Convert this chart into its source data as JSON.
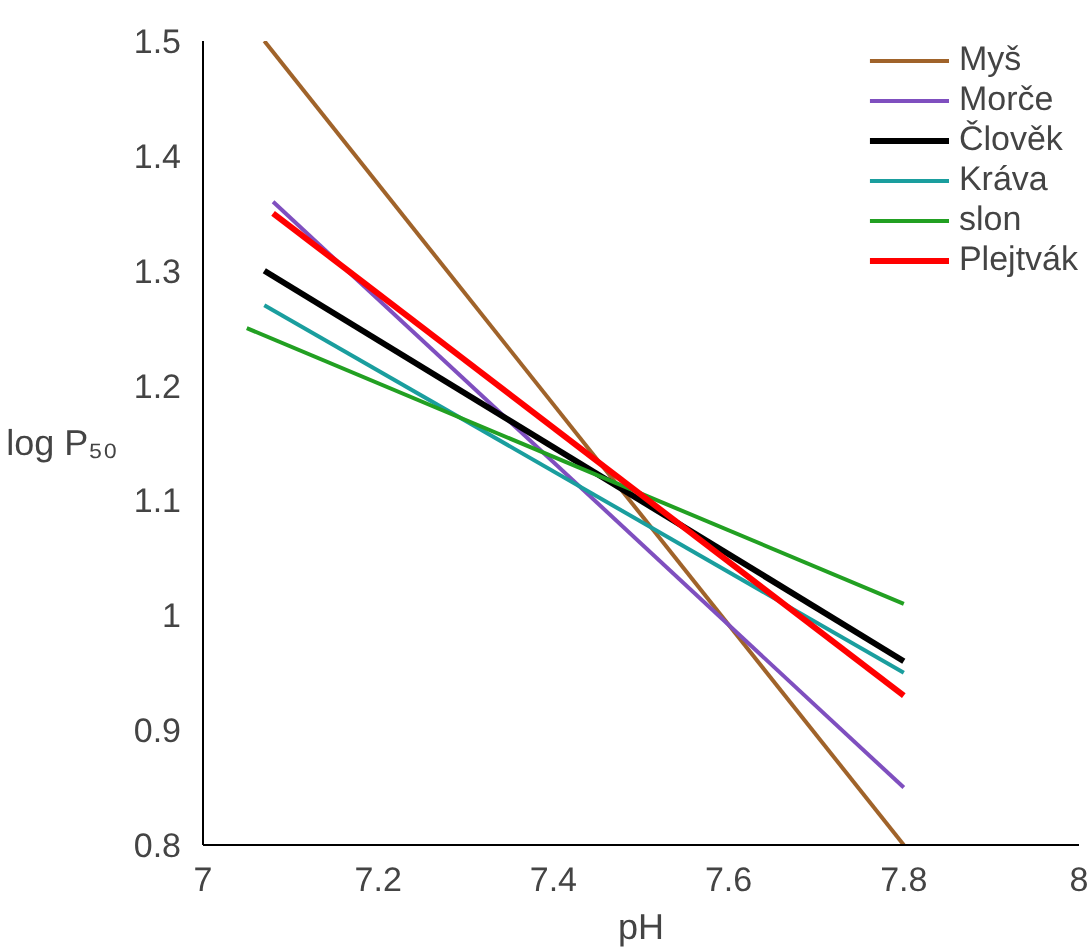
{
  "chart_data": {
    "type": "line",
    "xlabel": "pH",
    "ylabel": "log P₅₀",
    "xlim": [
      7,
      8
    ],
    "xticks": [
      7,
      7.2,
      7.4,
      7.6,
      7.8,
      8
    ],
    "ylim": [
      0.8,
      1.5
    ],
    "yticks": [
      0.8,
      0.9,
      1,
      1.1,
      1.2,
      1.3,
      1.4,
      1.5
    ],
    "grid": false,
    "legend": "top right",
    "marker": "none",
    "series": [
      {
        "name": "Myš",
        "color": "#a0632a",
        "x": [
          7.07,
          7.8
        ],
        "values": [
          1.5,
          0.8
        ]
      },
      {
        "name": "Morče",
        "color": "#7f4fbf",
        "x": [
          7.08,
          7.8
        ],
        "values": [
          1.36,
          0.85
        ]
      },
      {
        "name": "Člověk",
        "color": "#000000",
        "x": [
          7.07,
          7.8
        ],
        "values": [
          1.3,
          0.96
        ]
      },
      {
        "name": "Kráva",
        "color": "#1a9e9e",
        "x": [
          7.07,
          7.8
        ],
        "values": [
          1.27,
          0.95
        ]
      },
      {
        "name": "slon",
        "color": "#22a022",
        "x": [
          7.05,
          7.8
        ],
        "values": [
          1.25,
          1.01
        ]
      },
      {
        "name": "Plejtvák",
        "color": "#ff0000",
        "x": [
          7.08,
          7.8
        ],
        "values": [
          1.35,
          0.93
        ]
      }
    ]
  }
}
